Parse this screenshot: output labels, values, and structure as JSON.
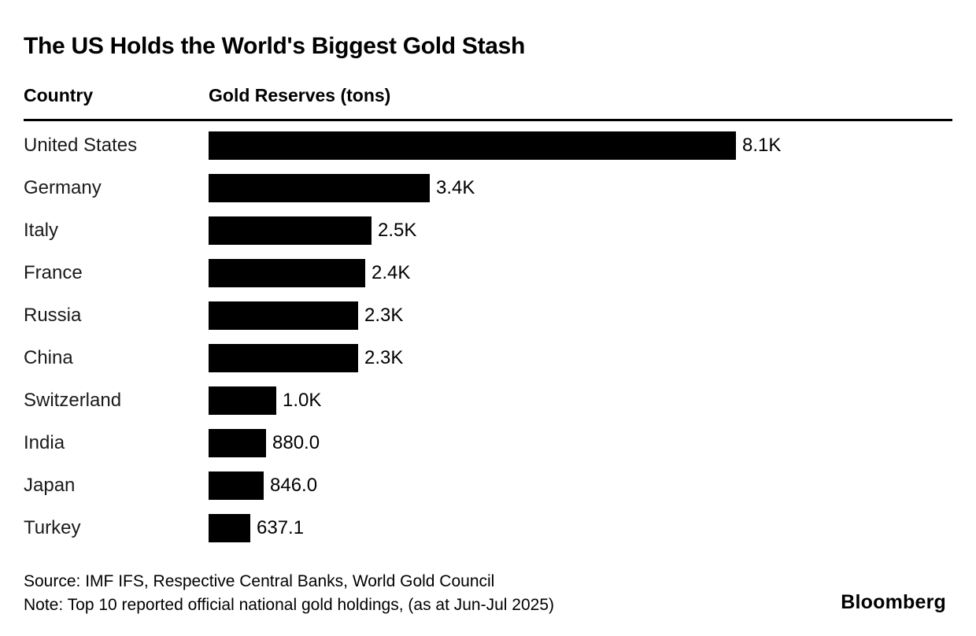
{
  "title": "The US Holds the World's Biggest Gold Stash",
  "columns": {
    "country": "Country",
    "value": "Gold Reserves (tons)"
  },
  "chart_data": {
    "type": "bar",
    "orientation": "horizontal",
    "title": "The US Holds the World's Biggest Gold Stash",
    "xlabel": "Gold Reserves (tons)",
    "ylabel": "Country",
    "categories": [
      "United States",
      "Germany",
      "Italy",
      "France",
      "Russia",
      "China",
      "Switzerland",
      "India",
      "Japan",
      "Turkey"
    ],
    "values": [
      8100,
      3400,
      2500,
      2400,
      2300,
      2300,
      1040,
      880,
      846,
      637.1
    ],
    "value_labels": [
      "8.1K",
      "3.4K",
      "2.5K",
      "2.4K",
      "2.3K",
      "2.3K",
      "1.0K",
      "880.0",
      "846.0",
      "637.1"
    ],
    "xlim": [
      0,
      8100
    ],
    "bar_color": "#000000",
    "grid": false,
    "legend": "none"
  },
  "footer": {
    "source": "Source: IMF IFS, Respective Central Banks, World Gold Council",
    "note": "Note: Top 10 reported official national gold holdings, (as at Jun-Jul 2025)",
    "brand": "Bloomberg"
  }
}
